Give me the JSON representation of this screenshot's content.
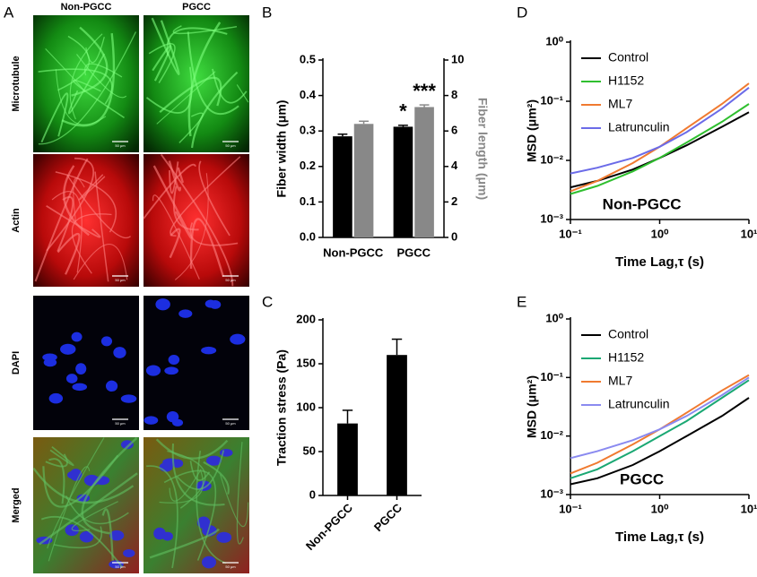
{
  "panel_labels": [
    "A",
    "B",
    "C",
    "D",
    "E"
  ],
  "panel_a": {
    "columns": [
      "Non-PGCC",
      "PGCC"
    ],
    "rows": [
      "Microtubule",
      "Actin",
      "DAPI",
      "Merged"
    ],
    "scale_bar": "50 μm"
  },
  "chart_data": [
    {
      "type": "bar",
      "categories": [
        "Non-PGCC",
        "PGCC"
      ],
      "series": [
        {
          "color": "#000000",
          "values": [
            0.285,
            0.312
          ],
          "errors": [
            0.006,
            0.004
          ]
        },
        {
          "color": "#888888",
          "axis": "y2",
          "values": [
            6.4,
            7.35
          ],
          "errors": [
            0.15,
            0.12
          ]
        }
      ],
      "ylabel": "Fiber width (μm)",
      "y2label": "Fiber length (μm)",
      "ylim": [
        0,
        0.5
      ],
      "yticks": [
        {
          "value": 0,
          "label": "0.0"
        },
        0.1,
        0.2,
        0.3,
        0.4,
        0.5
      ],
      "y2lim": [
        0,
        10
      ],
      "y2ticks": [
        0,
        2,
        4,
        6,
        8,
        10
      ],
      "annotations": [
        "*",
        "***"
      ]
    },
    {
      "type": "bar",
      "categories": [
        "Non-PGCC",
        "PGCC"
      ],
      "values": [
        82,
        160
      ],
      "errors": [
        15,
        18
      ],
      "color": "#000000",
      "ylabel": "Traction stress (Pa)",
      "ylim": [
        0,
        200
      ],
      "yticks": [
        0,
        50,
        100,
        150,
        200
      ]
    },
    {
      "type": "line",
      "log_x": true,
      "log_y": true,
      "x": [
        0.1,
        0.2,
        0.5,
        1,
        2,
        5,
        10
      ],
      "series": [
        {
          "name": "Control",
          "color": "#000000",
          "values": [
            0.0035,
            0.0045,
            0.007,
            0.011,
            0.018,
            0.037,
            0.065
          ]
        },
        {
          "name": "H1152",
          "color": "#2fbf2f",
          "values": [
            0.0027,
            0.0037,
            0.0065,
            0.011,
            0.02,
            0.045,
            0.09
          ]
        },
        {
          "name": "ML7",
          "color": "#f07a30",
          "values": [
            0.003,
            0.0045,
            0.009,
            0.017,
            0.035,
            0.09,
            0.2
          ]
        },
        {
          "name": "Latrunculin",
          "color": "#6b6be8",
          "values": [
            0.006,
            0.0075,
            0.011,
            0.017,
            0.03,
            0.075,
            0.17
          ]
        }
      ],
      "annotation": "Non-PGCC",
      "xlabel": "Time Lag,τ (s)",
      "ylabel": "MSD (μm²)",
      "xlim": [
        0.1,
        10
      ],
      "xticks": [
        {
          "value": 0.1,
          "label": "10⁻¹"
        },
        {
          "value": 1,
          "label": "10⁰"
        },
        {
          "value": 10,
          "label": "10¹"
        }
      ],
      "ylim": [
        0.001,
        1
      ],
      "yticks": [
        {
          "value": 0.001,
          "label": "10⁻³"
        },
        {
          "value": 0.01,
          "label": "10⁻²"
        },
        {
          "value": 0.1,
          "label": "10⁻¹"
        },
        {
          "value": 1,
          "label": "10⁰"
        }
      ],
      "legend": "upper left"
    },
    {
      "type": "line",
      "log_x": true,
      "log_y": true,
      "x": [
        0.1,
        0.2,
        0.5,
        1,
        2,
        5,
        10
      ],
      "series": [
        {
          "name": "Control",
          "color": "#000000",
          "values": [
            0.0015,
            0.0019,
            0.0032,
            0.0055,
            0.01,
            0.022,
            0.045
          ]
        },
        {
          "name": "H1152",
          "color": "#1aa873",
          "values": [
            0.0019,
            0.0027,
            0.0055,
            0.01,
            0.018,
            0.045,
            0.09
          ]
        },
        {
          "name": "ML7",
          "color": "#f07a30",
          "values": [
            0.0023,
            0.0035,
            0.0072,
            0.013,
            0.025,
            0.06,
            0.11
          ]
        },
        {
          "name": "Latrunculin",
          "color": "#8a8af0",
          "values": [
            0.0042,
            0.0055,
            0.0085,
            0.013,
            0.022,
            0.05,
            0.1
          ]
        }
      ],
      "annotation": "PGCC",
      "xlabel": "Time Lag,τ (s)",
      "ylabel": "MSD (μm²)",
      "xlim": [
        0.1,
        10
      ],
      "xticks": [
        {
          "value": 0.1,
          "label": "10⁻¹"
        },
        {
          "value": 1,
          "label": "10⁰"
        },
        {
          "value": 10,
          "label": "10¹"
        }
      ],
      "ylim": [
        0.001,
        1
      ],
      "yticks": [
        {
          "value": 0.001,
          "label": "10⁻³"
        },
        {
          "value": 0.01,
          "label": "10⁻²"
        },
        {
          "value": 0.1,
          "label": "10⁻¹"
        },
        {
          "value": 1,
          "label": "10⁰"
        }
      ],
      "legend": "upper left"
    }
  ]
}
